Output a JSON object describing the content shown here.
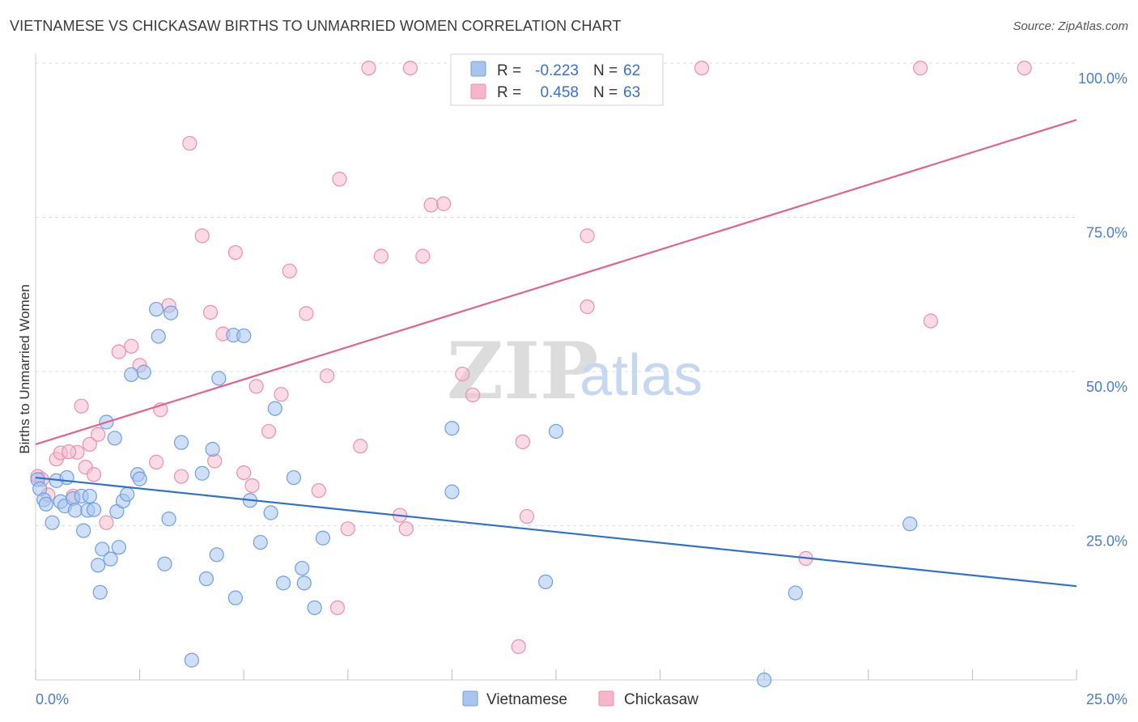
{
  "header": {
    "title": "VIETNAMESE VS CHICKASAW BIRTHS TO UNMARRIED WOMEN CORRELATION CHART",
    "source": "Source: ZipAtlas.com"
  },
  "watermark": {
    "zip": "ZIP",
    "atlas": "atlas"
  },
  "legend": {
    "rows": [
      {
        "r_label": "R =",
        "r_value": "-0.223",
        "n_label": "N =",
        "n_value": "62",
        "color": "#a8c4ef"
      },
      {
        "r_label": "R =",
        "r_value": "0.458",
        "n_label": "N =",
        "n_value": "63",
        "color": "#f4b6c8"
      }
    ]
  },
  "bottom_legend": [
    {
      "label": "Vietnamese",
      "color": "#a8c4ef"
    },
    {
      "label": "Chickasaw",
      "color": "#f4b6c8"
    }
  ],
  "colors": {
    "vietnamese_fill": "#a8c4ef",
    "vietnamese_stroke": "#6f9fe0",
    "vietnamese_line": "#2f6fd0",
    "chickasaw_fill": "#f6bccd",
    "chickasaw_stroke": "#e890aa",
    "chickasaw_line": "#e0628e",
    "tick_text": "#4a7cc9"
  },
  "chart_data": {
    "type": "scatter",
    "title": "VIETNAMESE VS CHICKASAW BIRTHS TO UNMARRIED WOMEN CORRELATION CHART",
    "xlabel": "",
    "ylabel": "Births to Unmarried Women",
    "xlim": [
      0,
      25
    ],
    "ylim": [
      0,
      100
    ],
    "x_tick_labels": [
      "0.0%",
      "25.0%"
    ],
    "y_tick_labels": [
      "25.0%",
      "50.0%",
      "75.0%",
      "100.0%"
    ],
    "y_tick_values": [
      25,
      50,
      75,
      100
    ],
    "grid": true,
    "legend_position": "top-center",
    "series": [
      {
        "name": "Vietnamese",
        "stats": {
          "R": -0.223,
          "N": 62
        },
        "trend": {
          "x": [
            0,
            25
          ],
          "y": [
            32.8,
            15.2
          ]
        },
        "points": [
          [
            0.05,
            32.5
          ],
          [
            0.1,
            31
          ],
          [
            0.2,
            29.2
          ],
          [
            0.25,
            28.5
          ],
          [
            0.4,
            25.5
          ],
          [
            0.5,
            32.3
          ],
          [
            0.6,
            28.9
          ],
          [
            0.7,
            28.2
          ],
          [
            0.75,
            32.8
          ],
          [
            0.9,
            29.4
          ],
          [
            0.95,
            27.5
          ],
          [
            1.1,
            29.8
          ],
          [
            1.15,
            24.2
          ],
          [
            1.25,
            27.5
          ],
          [
            1.3,
            29.8
          ],
          [
            1.4,
            27.6
          ],
          [
            1.5,
            18.6
          ],
          [
            1.55,
            14.2
          ],
          [
            1.6,
            21.2
          ],
          [
            1.7,
            41.8
          ],
          [
            1.8,
            19.6
          ],
          [
            1.9,
            39.2
          ],
          [
            1.95,
            27.3
          ],
          [
            2.0,
            21.5
          ],
          [
            2.1,
            29
          ],
          [
            2.2,
            30.1
          ],
          [
            2.3,
            49.5
          ],
          [
            2.45,
            33.3
          ],
          [
            2.5,
            32.6
          ],
          [
            2.6,
            49.9
          ],
          [
            2.9,
            60.1
          ],
          [
            2.95,
            55.7
          ],
          [
            3.1,
            18.8
          ],
          [
            3.2,
            26.1
          ],
          [
            3.25,
            59.5
          ],
          [
            3.5,
            38.5
          ],
          [
            3.75,
            3.2
          ],
          [
            4.0,
            33.5
          ],
          [
            4.1,
            16.4
          ],
          [
            4.25,
            37.4
          ],
          [
            4.35,
            20.3
          ],
          [
            4.4,
            48.9
          ],
          [
            4.75,
            55.9
          ],
          [
            4.8,
            13.3
          ],
          [
            5.0,
            55.8
          ],
          [
            5.15,
            29.1
          ],
          [
            5.4,
            22.3
          ],
          [
            5.65,
            27.1
          ],
          [
            5.75,
            44
          ],
          [
            5.95,
            15.7
          ],
          [
            6.2,
            32.8
          ],
          [
            6.4,
            18.1
          ],
          [
            6.45,
            15.7
          ],
          [
            6.7,
            11.7
          ],
          [
            6.9,
            23
          ],
          [
            10.0,
            40.8
          ],
          [
            10.0,
            30.5
          ],
          [
            12.25,
            15.9
          ],
          [
            12.5,
            40.3
          ],
          [
            18.25,
            14.1
          ],
          [
            21.0,
            25.3
          ],
          [
            17.5,
            0
          ]
        ]
      },
      {
        "name": "Chickasaw",
        "stats": {
          "R": 0.458,
          "N": 63
        },
        "trend": {
          "x": [
            0,
            25
          ],
          "y": [
            38.2,
            90.8
          ]
        },
        "points": [
          [
            0.05,
            33
          ],
          [
            0.15,
            32.5
          ],
          [
            0.3,
            30
          ],
          [
            0.5,
            35.8
          ],
          [
            0.6,
            36.8
          ],
          [
            0.9,
            29.8
          ],
          [
            1.0,
            36.9
          ],
          [
            1.1,
            44.4
          ],
          [
            1.2,
            34.5
          ],
          [
            1.3,
            38.2
          ],
          [
            1.4,
            33.3
          ],
          [
            1.5,
            39.8
          ],
          [
            1.7,
            25.5
          ],
          [
            2.0,
            53.2
          ],
          [
            2.3,
            54.1
          ],
          [
            2.5,
            51
          ],
          [
            2.9,
            35.3
          ],
          [
            3.0,
            43.8
          ],
          [
            3.2,
            60.7
          ],
          [
            3.5,
            33
          ],
          [
            3.7,
            87
          ],
          [
            4.0,
            72
          ],
          [
            4.2,
            59.6
          ],
          [
            4.3,
            35.5
          ],
          [
            4.5,
            56.1
          ],
          [
            4.8,
            69.3
          ],
          [
            5.0,
            33.6
          ],
          [
            5.2,
            31.5
          ],
          [
            5.3,
            47.6
          ],
          [
            5.6,
            40.3
          ],
          [
            5.9,
            46.3
          ],
          [
            6.1,
            66.3
          ],
          [
            6.5,
            59.4
          ],
          [
            6.8,
            30.7
          ],
          [
            7.0,
            49.3
          ],
          [
            7.25,
            11.7
          ],
          [
            7.3,
            81.2
          ],
          [
            7.5,
            24.5
          ],
          [
            7.8,
            37.9
          ],
          [
            8.0,
            99.2
          ],
          [
            8.3,
            68.7
          ],
          [
            8.75,
            26.7
          ],
          [
            8.9,
            24.5
          ],
          [
            9.0,
            99.2
          ],
          [
            9.3,
            68.7
          ],
          [
            9.5,
            77
          ],
          [
            9.8,
            77.2
          ],
          [
            10.25,
            49.6
          ],
          [
            10.5,
            46.2
          ],
          [
            11.6,
            5.4
          ],
          [
            11.7,
            38.6
          ],
          [
            11.8,
            26.5
          ],
          [
            12.0,
            99.2
          ],
          [
            13.25,
            60.5
          ],
          [
            13.25,
            72
          ],
          [
            13.5,
            99.2
          ],
          [
            14.75,
            99.2
          ],
          [
            16.0,
            99.2
          ],
          [
            18.5,
            19.7
          ],
          [
            21.25,
            99.2
          ],
          [
            21.5,
            58.2
          ],
          [
            23.75,
            99.2
          ],
          [
            0.8,
            37
          ]
        ]
      }
    ]
  }
}
